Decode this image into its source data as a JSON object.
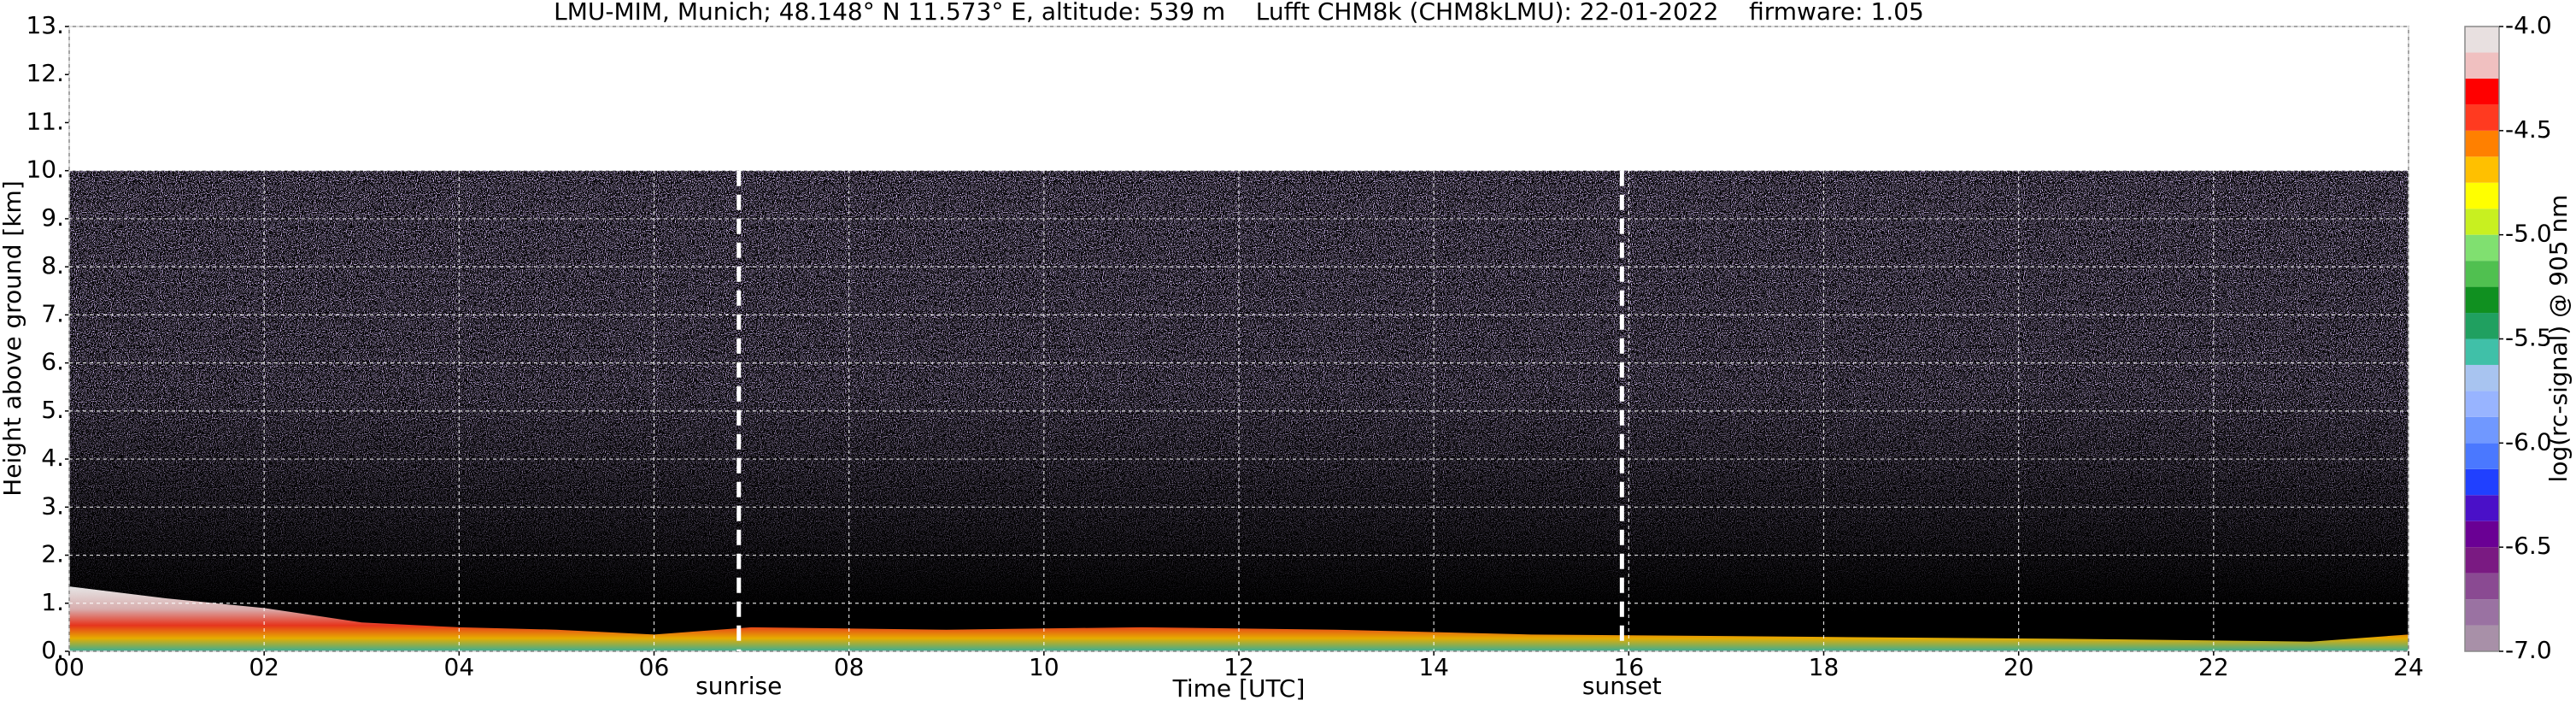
{
  "chart_data": {
    "type": "heatmap",
    "title": "LMU-MIM, Munich; 48.148° N 11.573° E, altitude: 539 m    Lufft CHM8k (CHM8kLMU): 22-01-2022    firmware: 1.05",
    "x_label": "Time [UTC]",
    "y_label": "Height above ground [km]",
    "xlim": [
      0,
      24
    ],
    "xticks": [
      {
        "value": 0,
        "label": "00"
      },
      {
        "value": 2,
        "label": "02"
      },
      {
        "value": 4,
        "label": "04"
      },
      {
        "value": 6,
        "label": "06"
      },
      {
        "value": 8,
        "label": "08"
      },
      {
        "value": 10,
        "label": "10"
      },
      {
        "value": 12,
        "label": "12"
      },
      {
        "value": 14,
        "label": "14"
      },
      {
        "value": 16,
        "label": "16"
      },
      {
        "value": 18,
        "label": "18"
      },
      {
        "value": 20,
        "label": "20"
      },
      {
        "value": 22,
        "label": "22"
      },
      {
        "value": 24,
        "label": "24"
      }
    ],
    "ylim": [
      0,
      13
    ],
    "yticks": [
      {
        "value": 0,
        "label": "0."
      },
      {
        "value": 1,
        "label": "1."
      },
      {
        "value": 2,
        "label": "2."
      },
      {
        "value": 3,
        "label": "3."
      },
      {
        "value": 4,
        "label": "4."
      },
      {
        "value": 5,
        "label": "5."
      },
      {
        "value": 6,
        "label": "6."
      },
      {
        "value": 7,
        "label": "7."
      },
      {
        "value": 8,
        "label": "8."
      },
      {
        "value": 9,
        "label": "9."
      },
      {
        "value": 10,
        "label": "10."
      },
      {
        "value": 11,
        "label": "11."
      },
      {
        "value": 12,
        "label": "12."
      },
      {
        "value": 13,
        "label": "13."
      }
    ],
    "grid": true,
    "data_top": 10,
    "annotations": [
      {
        "x": 6.87,
        "label": "sunrise"
      },
      {
        "x": 15.93,
        "label": "sunset"
      }
    ],
    "colorbar": {
      "label": "log(rc-signal) @ 905 nm",
      "lim": [
        -7,
        -4
      ],
      "ticks": [
        {
          "value": -7,
          "label": "-7.0"
        },
        {
          "value": -6.5,
          "label": "-6.5"
        },
        {
          "value": -6,
          "label": "-6.0"
        },
        {
          "value": -5.5,
          "label": "-5.5"
        },
        {
          "value": -5,
          "label": "-5.0"
        },
        {
          "value": -4.5,
          "label": "-4.5"
        },
        {
          "value": -4,
          "label": "-4.0"
        }
      ],
      "bounds": [
        -7,
        -6.875,
        -6.75,
        -6.625,
        -6.5,
        -6.375,
        -6.25,
        -6.125,
        -6,
        -5.875,
        -5.75,
        -5.625,
        -5.5,
        -5.375,
        -5.25,
        -5.125,
        -5,
        -4.875,
        -4.75,
        -4.625,
        -4.5,
        -4.375,
        -4.25,
        -4.125,
        -4
      ],
      "colors": [
        "#a890a8",
        "#9a72a2",
        "#8a4a92",
        "#7a1a82",
        "#6a0094",
        "#4a10c8",
        "#2040ff",
        "#4a78ff",
        "#7098ff",
        "#98b4ff",
        "#a8c4f0",
        "#40c0a8",
        "#20a060",
        "#109020",
        "#50c050",
        "#80e070",
        "#c8f020",
        "#ffff00",
        "#ffc000",
        "#ff8000",
        "#ff3a20",
        "#ff0000",
        "#f0c0c0",
        "#e8e0e0"
      ]
    }
  }
}
